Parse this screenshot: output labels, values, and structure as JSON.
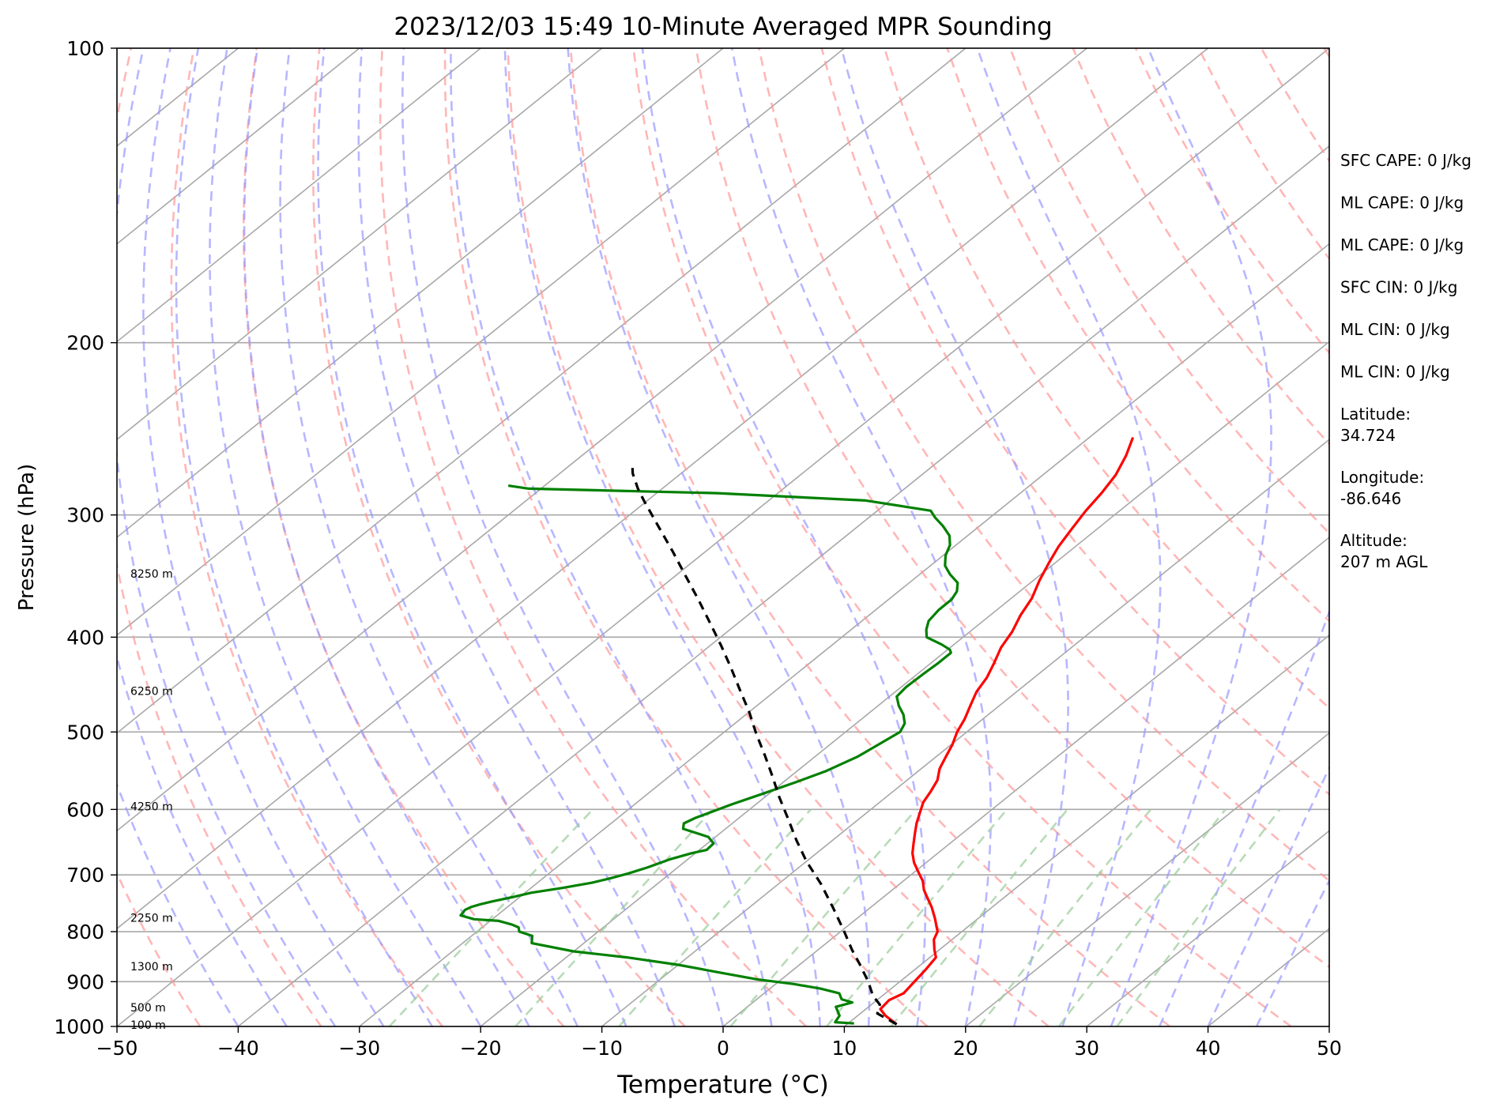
{
  "chart_data": {
    "type": "line",
    "title": "2023/12/03 15:49 10-Minute Averaged MPR Sounding",
    "xlabel": "Temperature (°C)",
    "ylabel": "Pressure (hPa)",
    "xlim": [
      -50,
      50
    ],
    "ylim": [
      1000,
      100
    ],
    "y_scale": "log",
    "skew_t": true,
    "grid": true,
    "x_ticks": [
      -50,
      -40,
      -30,
      -20,
      -10,
      0,
      10,
      20,
      30,
      40,
      50
    ],
    "x_tick_labels": [
      "−50",
      "−40",
      "−30",
      "−20",
      "−10",
      "0",
      "10",
      "20",
      "30",
      "40",
      "50"
    ],
    "y_ticks": [
      1000,
      900,
      800,
      700,
      600,
      500,
      400,
      300,
      200,
      100
    ],
    "y_tick_labels": [
      "1000",
      "900",
      "800",
      "700",
      "600",
      "500",
      "400",
      "300",
      "200",
      "100"
    ],
    "series": [
      {
        "color": "#ff0000",
        "style": "solid",
        "points": [
          [
            14.1,
            995
          ],
          [
            12.3,
            975
          ],
          [
            11.2,
            960
          ],
          [
            11.0,
            940
          ],
          [
            11.5,
            925
          ],
          [
            11.2,
            900
          ],
          [
            10.9,
            875
          ],
          [
            10.5,
            850
          ],
          [
            9.6,
            835
          ],
          [
            8.5,
            815
          ],
          [
            8.0,
            800
          ],
          [
            6.4,
            775
          ],
          [
            5.0,
            755
          ],
          [
            3.8,
            740
          ],
          [
            2.6,
            725
          ],
          [
            1.6,
            710
          ],
          [
            0.3,
            695
          ],
          [
            -1.0,
            680
          ],
          [
            -2.1,
            665
          ],
          [
            -3.0,
            650
          ],
          [
            -3.9,
            635
          ],
          [
            -4.8,
            620
          ],
          [
            -5.6,
            605
          ],
          [
            -6.4,
            590
          ],
          [
            -6.9,
            575
          ],
          [
            -7.5,
            560
          ],
          [
            -8.5,
            545
          ],
          [
            -9.2,
            530
          ],
          [
            -9.9,
            515
          ],
          [
            -10.8,
            500
          ],
          [
            -11.5,
            485
          ],
          [
            -12.4,
            470
          ],
          [
            -13.3,
            455
          ],
          [
            -13.9,
            440
          ],
          [
            -14.8,
            425
          ],
          [
            -15.8,
            410
          ],
          [
            -16.5,
            395
          ],
          [
            -17.5,
            380
          ],
          [
            -18.3,
            365
          ],
          [
            -19.5,
            350
          ],
          [
            -20.5,
            336
          ],
          [
            -21.4,
            323
          ],
          [
            -22.1,
            310
          ],
          [
            -22.8,
            297
          ],
          [
            -23.3,
            285
          ],
          [
            -24.0,
            273
          ],
          [
            -25.1,
            261
          ],
          [
            -26.4,
            250
          ]
        ]
      },
      {
        "color": "#008000",
        "style": "solid",
        "points": [
          [
            10.5,
            993
          ],
          [
            8.8,
            990
          ],
          [
            8.5,
            975
          ],
          [
            7.3,
            955
          ],
          [
            8.2,
            945
          ],
          [
            7.0,
            938
          ],
          [
            6.2,
            925
          ],
          [
            4.2,
            915
          ],
          [
            1.5,
            905
          ],
          [
            -2.0,
            895
          ],
          [
            -6.0,
            880
          ],
          [
            -10.0,
            865
          ],
          [
            -15.0,
            850
          ],
          [
            -20.0,
            838
          ],
          [
            -24.3,
            822
          ],
          [
            -25.0,
            808
          ],
          [
            -26.5,
            800
          ],
          [
            -27.0,
            792
          ],
          [
            -27.8,
            787
          ],
          [
            -29.3,
            780
          ],
          [
            -31.5,
            777
          ],
          [
            -33.0,
            770
          ],
          [
            -33.2,
            760
          ],
          [
            -33.0,
            755
          ],
          [
            -32.5,
            750
          ],
          [
            -31.8,
            745
          ],
          [
            -30.5,
            737
          ],
          [
            -29.5,
            730
          ],
          [
            -27.5,
            722
          ],
          [
            -25.5,
            713
          ],
          [
            -24.5,
            706
          ],
          [
            -23.5,
            698
          ],
          [
            -22.5,
            688
          ],
          [
            -21.5,
            675
          ],
          [
            -20.3,
            665
          ],
          [
            -19.4,
            660
          ],
          [
            -19.5,
            650
          ],
          [
            -20.6,
            640
          ],
          [
            -23.5,
            628
          ],
          [
            -24.0,
            620
          ],
          [
            -23.6,
            612
          ],
          [
            -23.0,
            605
          ],
          [
            -22.0,
            593
          ],
          [
            -20.5,
            578
          ],
          [
            -19.0,
            563
          ],
          [
            -17.6,
            548
          ],
          [
            -16.5,
            530
          ],
          [
            -16.0,
            515
          ],
          [
            -15.5,
            500
          ],
          [
            -16.0,
            490
          ],
          [
            -17.0,
            480
          ],
          [
            -18.3,
            470
          ],
          [
            -19.4,
            460
          ],
          [
            -19.6,
            450
          ],
          [
            -19.5,
            435
          ],
          [
            -19.4,
            425
          ],
          [
            -19.4,
            415
          ],
          [
            -19.8,
            412
          ],
          [
            -21.0,
            407
          ],
          [
            -23.0,
            400
          ],
          [
            -23.8,
            393
          ],
          [
            -24.5,
            385
          ],
          [
            -24.8,
            375
          ],
          [
            -24.8,
            366
          ],
          [
            -25.2,
            359
          ],
          [
            -26.0,
            352
          ],
          [
            -27.5,
            345
          ],
          [
            -28.8,
            338
          ],
          [
            -29.8,
            330
          ],
          [
            -30.5,
            322
          ],
          [
            -31.5,
            315
          ],
          [
            -33.0,
            308
          ],
          [
            -34.5,
            302
          ],
          [
            -35.6,
            297
          ],
          [
            -42.0,
            290
          ],
          [
            -55.0,
            285
          ],
          [
            -71.0,
            282
          ],
          [
            -73.0,
            280
          ]
        ]
      },
      {
        "color": "#000000",
        "style": "dashed",
        "points": [
          [
            14.1,
            995
          ],
          [
            11.4,
            970
          ],
          [
            10.7,
            950
          ],
          [
            9.2,
            930
          ],
          [
            7.4,
            900
          ],
          [
            5.0,
            865
          ],
          [
            2.8,
            835
          ],
          [
            0.3,
            800
          ],
          [
            -3.0,
            757
          ],
          [
            -6.5,
            715
          ],
          [
            -10.0,
            678
          ],
          [
            -13.0,
            645
          ],
          [
            -15.9,
            613
          ],
          [
            -18.8,
            583
          ],
          [
            -21.5,
            555
          ],
          [
            -24.3,
            528
          ],
          [
            -27.2,
            502
          ],
          [
            -30.0,
            477
          ],
          [
            -33.0,
            453
          ],
          [
            -36.0,
            430
          ],
          [
            -39.1,
            408
          ],
          [
            -42.3,
            387
          ],
          [
            -45.7,
            366
          ],
          [
            -49.2,
            346
          ],
          [
            -52.7,
            327
          ],
          [
            -56.5,
            308
          ],
          [
            -60.3,
            290
          ],
          [
            -62.0,
            282
          ],
          [
            -64.0,
            272
          ],
          [
            -65.0,
            266
          ]
        ]
      }
    ],
    "height_labels": [
      "8250 m",
      "6250 m",
      "4250 m",
      "2250 m",
      "1300 m",
      "500 m",
      "100 m"
    ],
    "height_label_pressures": [
      345,
      455,
      597,
      776,
      870,
      958,
      998
    ],
    "annotations": [
      "SFC CAPE: 0 J/kg",
      "ML CAPE: 0 J/kg",
      "ML CAPE: 0 J/kg",
      "SFC CIN: 0 J/kg",
      "ML CIN: 0 J/kg",
      "ML CIN: 0 J/kg",
      "Latitude:\n34.724",
      "Longitude:\n-86.646",
      "Altitude:\n207 m AGL"
    ],
    "dry_adiabat_color": "#ff9999",
    "moist_adiabat_color": "#9999ff",
    "mixing_ratio_color": "#99cc99",
    "isotherm_color": "#a8a8a8"
  }
}
